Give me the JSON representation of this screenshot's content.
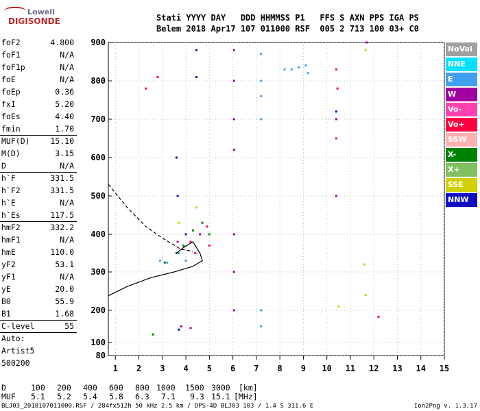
{
  "logo": {
    "line1": "Lowell",
    "line2": "DIGISONDE"
  },
  "header": {
    "line1": "Stati YYYY DAY   DDD HHMMSS P1   FFS S AXN PPS IGA PS",
    "line2": "Belem 2018 Apr17 107 011000 RSF  005 2 713 100 03+ C0"
  },
  "params": [
    {
      "name": "foF2",
      "value": "4.800"
    },
    {
      "name": "foF1",
      "value": "N/A"
    },
    {
      "name": "foF1p",
      "value": "N/A"
    },
    {
      "name": "foE",
      "value": "N/A"
    },
    {
      "name": "foEp",
      "value": "0.36"
    },
    {
      "name": "fxI",
      "value": "5.20"
    },
    {
      "name": "foEs",
      "value": "4.40"
    },
    {
      "name": "fmin",
      "value": "1.70"
    },
    {
      "name": "MUF(D)",
      "value": "15.10"
    },
    {
      "name": "M(D)",
      "value": "3.15"
    },
    {
      "name": "D",
      "value": "N/A"
    },
    {
      "name": "h`F",
      "value": "331.5"
    },
    {
      "name": "h`F2",
      "value": "331.5"
    },
    {
      "name": "h`E",
      "value": "N/A"
    },
    {
      "name": "h`Es",
      "value": "117.5"
    },
    {
      "name": "hmF2",
      "value": "332.2"
    },
    {
      "name": "hmF1",
      "value": "N/A"
    },
    {
      "name": "hmE",
      "value": "110.0"
    },
    {
      "name": "yF2",
      "value": "53.1"
    },
    {
      "name": "yF1",
      "value": "N/A"
    },
    {
      "name": "yE",
      "value": "20.0"
    },
    {
      "name": "B0",
      "value": "55.9"
    },
    {
      "name": "B1",
      "value": "1.68"
    },
    {
      "name": "C-level",
      "value": "55"
    },
    {
      "name": "Auto:",
      "value": ""
    },
    {
      "name": "Artist5",
      "value": ""
    },
    {
      "name": "500200",
      "value": ""
    }
  ],
  "legend": [
    {
      "label": "NoVal",
      "color": "#a0a0a0"
    },
    {
      "label": "NNE",
      "color": "#00e0ff"
    },
    {
      "label": "E",
      "color": "#40a0f0"
    },
    {
      "label": "W",
      "color": "#a000a0"
    },
    {
      "label": "Vo-",
      "color": "#ff40b0"
    },
    {
      "label": "Vo+",
      "color": "#ff0040"
    },
    {
      "label": "SSW",
      "color": "#ffb0b0"
    },
    {
      "label": "X-",
      "color": "#008000"
    },
    {
      "label": "X+",
      "color": "#80c060"
    },
    {
      "label": "SSE",
      "color": "#d0d000"
    },
    {
      "label": "NNW",
      "color": "#1010c0"
    }
  ],
  "footer": {
    "dist_label": "D",
    "dist_values": [
      "100",
      "200",
      "400",
      "600",
      "800",
      "1000",
      "1500",
      "3000",
      "[km]"
    ],
    "muf_label": "MUF",
    "muf_values": [
      "5.1",
      "5.2",
      "5.4",
      "5.8",
      "6.3",
      "7.1",
      "9.3",
      "15.1",
      "[MHz]"
    ],
    "info": "BLJ03_2018107011000.RSF / 284fx512h 50 kHz 2.5 km / DPS-4D BLJ03 103 / 1.4 S 311.6 E",
    "version": "Ion2Png v. 1.3.17"
  },
  "chart_data": {
    "type": "scatter",
    "x_ticks": [
      "1",
      "2",
      "3",
      "4",
      "5",
      "6",
      "7",
      "8",
      "9",
      "10",
      "11",
      "12",
      "13",
      "14",
      "15"
    ],
    "y_ticks": [
      "80",
      "100",
      "200",
      "300",
      "400",
      "500",
      "600",
      "700",
      "800",
      "900"
    ],
    "xlim": [
      0.7,
      15
    ],
    "ylim": [
      80,
      900
    ],
    "y_scale": "piecewise",
    "grid": true,
    "series": [
      {
        "name": "E",
        "color": "#40a0f0",
        "values": [
          [
            7.2,
            870
          ],
          [
            7.2,
            800
          ],
          [
            7.2,
            760
          ],
          [
            7.2,
            700
          ],
          [
            7.2,
            200
          ],
          [
            7.2,
            150
          ],
          [
            8.2,
            830
          ],
          [
            8.5,
            830
          ],
          [
            8.8,
            835
          ],
          [
            9.1,
            840
          ],
          [
            9.2,
            820
          ],
          [
            3.7,
            350
          ],
          [
            4.0,
            330
          ],
          [
            2.9,
            330
          ],
          [
            3.2,
            325
          ]
        ]
      },
      {
        "name": "W",
        "color": "#a000a0",
        "values": [
          [
            6.05,
            880
          ],
          [
            6.05,
            800
          ],
          [
            6.05,
            700
          ],
          [
            6.05,
            620
          ],
          [
            6.05,
            400
          ],
          [
            6.05,
            300
          ],
          [
            6.05,
            200
          ],
          [
            10.4,
            700
          ],
          [
            10.4,
            500
          ],
          [
            3.8,
            150
          ],
          [
            4.2,
            145
          ],
          [
            3.65,
            380
          ],
          [
            4.6,
            400
          ],
          [
            11.6,
            320
          ],
          [
            11.7,
            900
          ]
        ]
      },
      {
        "name": "Vo+",
        "color": "#ff0040",
        "values": [
          [
            10.4,
            830
          ],
          [
            10.45,
            780
          ],
          [
            10.4,
            650
          ],
          [
            4.2,
            380
          ],
          [
            4.9,
            420
          ],
          [
            5.0,
            370
          ],
          [
            4.4,
            350
          ],
          [
            2.3,
            780
          ],
          [
            2.8,
            810
          ],
          [
            12.2,
            180
          ]
        ]
      },
      {
        "name": "X-",
        "color": "#008000",
        "values": [
          [
            3.6,
            350
          ],
          [
            3.9,
            370
          ],
          [
            4.3,
            410
          ],
          [
            4.7,
            430
          ],
          [
            5.0,
            400
          ],
          [
            3.1,
            325
          ],
          [
            2.6,
            125
          ]
        ]
      },
      {
        "name": "SSE",
        "color": "#d0d000",
        "values": [
          [
            11.65,
            880
          ],
          [
            11.6,
            320
          ],
          [
            11.65,
            240
          ],
          [
            10.5,
            210
          ],
          [
            4.45,
            470
          ],
          [
            3.7,
            430
          ]
        ]
      },
      {
        "name": "NNW",
        "color": "#1010c0",
        "values": [
          [
            4.45,
            880
          ],
          [
            4.45,
            810
          ],
          [
            3.6,
            600
          ],
          [
            3.65,
            500
          ],
          [
            4.0,
            400
          ],
          [
            3.7,
            140
          ],
          [
            10.4,
            720
          ]
        ]
      }
    ],
    "traces": [
      {
        "name": "profile",
        "style": "solid",
        "points": [
          [
            0.7,
            238
          ],
          [
            1.5,
            262
          ],
          [
            2.5,
            285
          ],
          [
            3.5,
            300
          ],
          [
            4.3,
            315
          ],
          [
            4.7,
            330
          ],
          [
            4.6,
            350
          ],
          [
            4.3,
            380
          ],
          [
            3.9,
            365
          ],
          [
            3.6,
            350
          ]
        ]
      },
      {
        "name": "muf",
        "style": "dashed",
        "points": [
          [
            0.7,
            530
          ],
          [
            1.5,
            470
          ],
          [
            2.3,
            420
          ],
          [
            3.0,
            390
          ],
          [
            3.8,
            360
          ],
          [
            4.3,
            355
          ]
        ]
      }
    ]
  }
}
